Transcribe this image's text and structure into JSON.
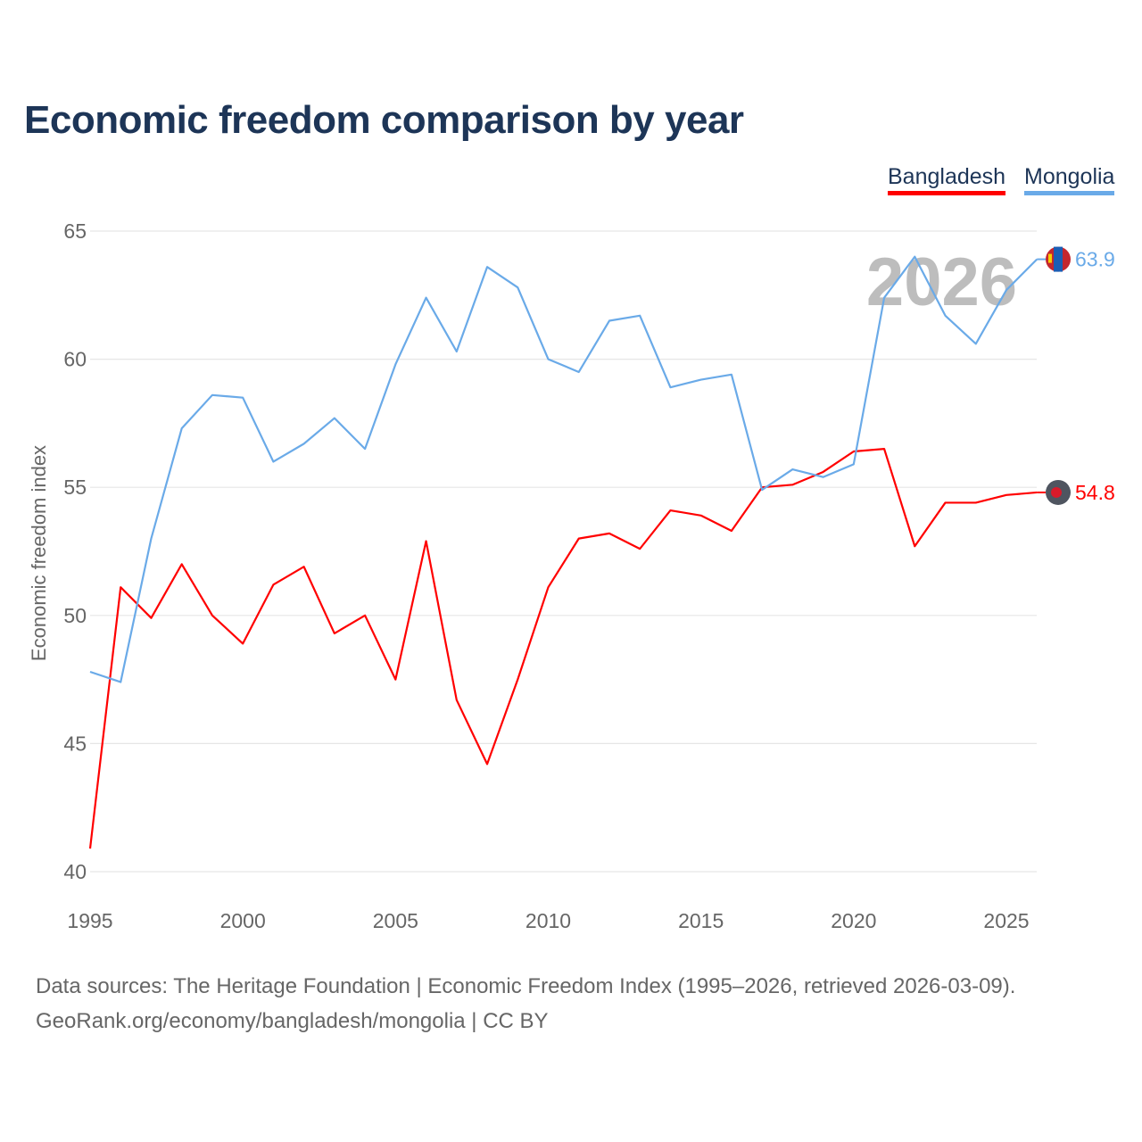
{
  "chart_data": {
    "type": "line",
    "title": "Economic freedom comparison by year",
    "xlabel": "",
    "ylabel": "Economic freedom index",
    "xlim": [
      1995,
      2026
    ],
    "ylim": [
      40,
      65
    ],
    "x_ticks": [
      1995,
      2000,
      2005,
      2010,
      2015,
      2020,
      2025
    ],
    "y_ticks": [
      40,
      45,
      50,
      55,
      60,
      65
    ],
    "grid": true,
    "legend_position": "top-right",
    "year_watermark": "2026",
    "x": [
      1995,
      1996,
      1997,
      1998,
      1999,
      2000,
      2001,
      2002,
      2003,
      2004,
      2005,
      2006,
      2007,
      2008,
      2009,
      2010,
      2011,
      2012,
      2013,
      2014,
      2015,
      2016,
      2017,
      2018,
      2019,
      2020,
      2021,
      2022,
      2023,
      2024,
      2025,
      2026
    ],
    "series": [
      {
        "name": "Bangladesh",
        "color": "#ff0000",
        "end_label": "54.8",
        "values": [
          40.9,
          51.1,
          49.9,
          52.0,
          50.0,
          48.9,
          51.2,
          51.9,
          49.3,
          50.0,
          47.5,
          52.9,
          46.7,
          44.2,
          47.5,
          51.1,
          53.0,
          53.2,
          52.6,
          54.1,
          53.9,
          53.3,
          55.0,
          55.1,
          55.6,
          56.4,
          56.5,
          52.7,
          54.4,
          54.4,
          54.7,
          54.8
        ]
      },
      {
        "name": "Mongolia",
        "color": "#6aaae8",
        "end_label": "63.9",
        "values": [
          47.8,
          47.4,
          53.0,
          57.3,
          58.6,
          58.5,
          56.0,
          56.7,
          57.7,
          56.5,
          59.8,
          62.4,
          60.3,
          63.6,
          62.8,
          60.0,
          59.5,
          61.5,
          61.7,
          58.9,
          59.2,
          59.4,
          54.9,
          55.7,
          55.4,
          55.9,
          62.4,
          64.0,
          61.7,
          60.6,
          62.7,
          63.9
        ]
      }
    ]
  },
  "footer": {
    "line1": "Data sources: The Heritage Foundation | Economic Freedom Index (1995–2026, retrieved 2026-03-09).",
    "line2": "GeoRank.org/economy/bangladesh/mongolia | CC BY"
  }
}
